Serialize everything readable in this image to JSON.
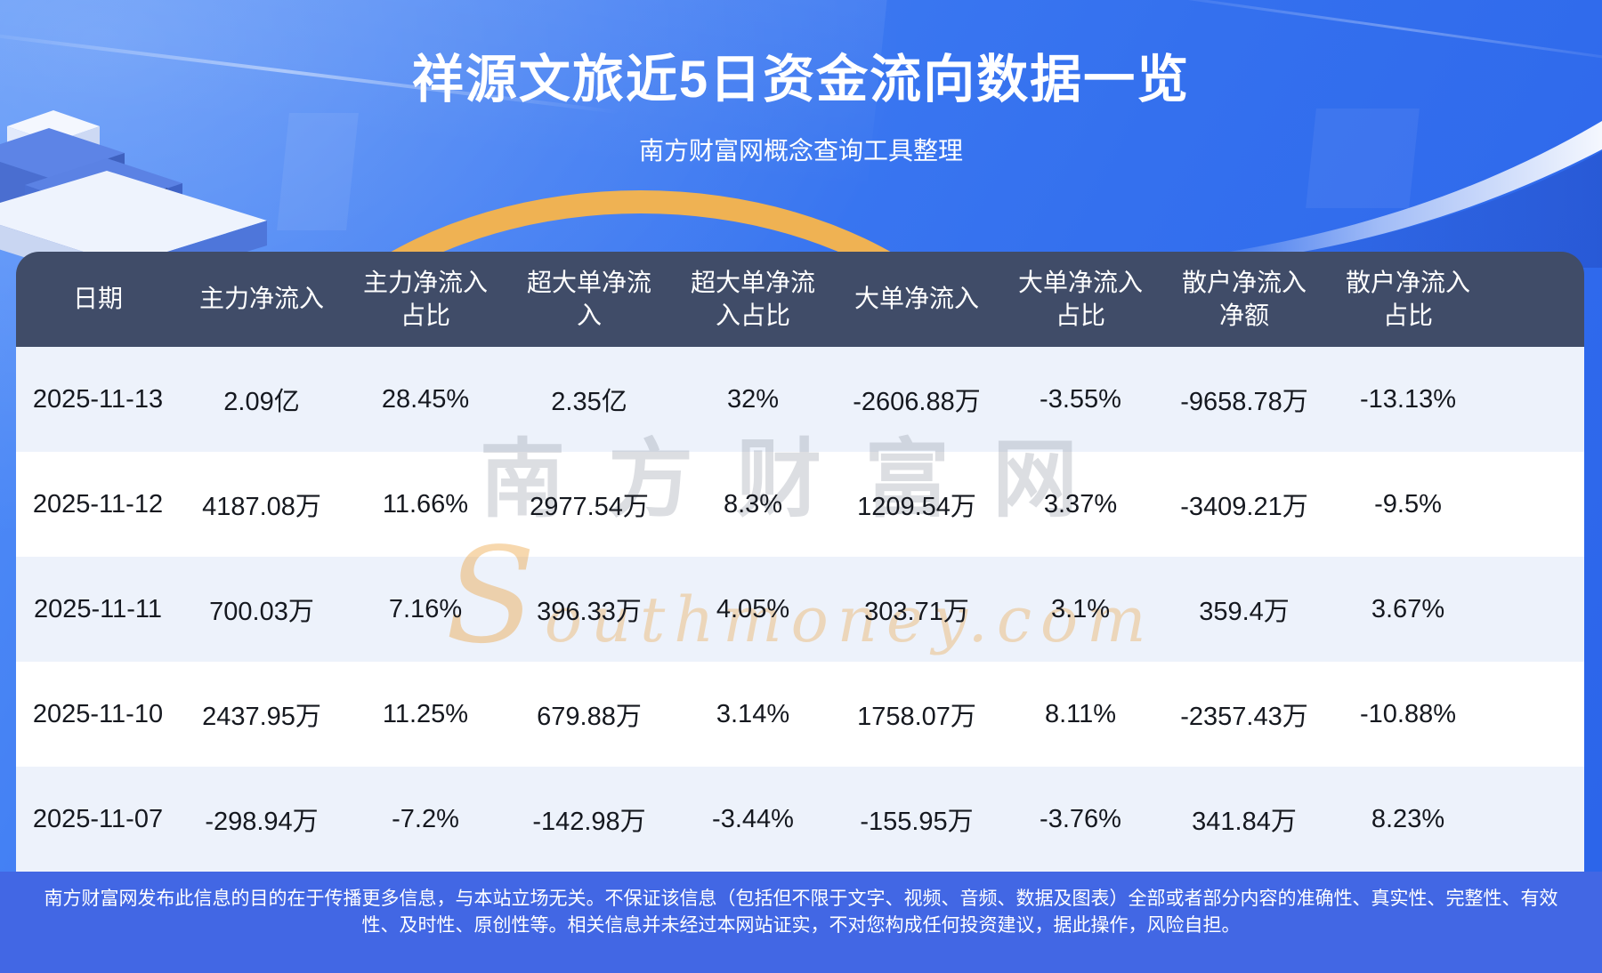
{
  "header": {
    "title": "祥源文旅近5日资金流向数据一览",
    "subtitle": "南方财富网概念查询工具整理"
  },
  "watermark": {
    "cn": "南方财富网",
    "en": "Southmoney.com"
  },
  "chart_data": {
    "type": "table",
    "title": "祥源文旅近5日资金流向数据一览",
    "columns": [
      "日期",
      "主力净流入",
      "主力净流入占比",
      "超大单净流入",
      "超大单净流入占比",
      "大单净流入",
      "大单净流入占比",
      "散户净流入净额",
      "散户净流入占比"
    ],
    "rows": [
      [
        "2025-11-13",
        "2.09亿",
        "28.45%",
        "2.35亿",
        "32%",
        "-2606.88万",
        "-3.55%",
        "-9658.78万",
        "-13.13%"
      ],
      [
        "2025-11-12",
        "4187.08万",
        "11.66%",
        "2977.54万",
        "8.3%",
        "1209.54万",
        "3.37%",
        "-3409.21万",
        "-9.5%"
      ],
      [
        "2025-11-11",
        "700.03万",
        "7.16%",
        "396.33万",
        "4.05%",
        "303.71万",
        "3.1%",
        "359.4万",
        "3.67%"
      ],
      [
        "2025-11-10",
        "2437.95万",
        "11.25%",
        "679.88万",
        "3.14%",
        "1758.07万",
        "8.11%",
        "-2357.43万",
        "-10.88%"
      ],
      [
        "2025-11-07",
        "-298.94万",
        "-7.2%",
        "-142.98万",
        "-3.44%",
        "-155.95万",
        "-3.76%",
        "341.84万",
        "8.23%"
      ]
    ]
  },
  "footer": {
    "disclaimer": "南方财富网发布此信息的目的在于传播更多信息，与本站立场无关。不保证该信息（包括但不限于文字、视频、音频、数据及图表）全部或者部分内容的准确性、真实性、完整性、有效性、及时性、原创性等。相关信息并未经过本网站证实，不对您构成任何投资建议，据此操作，风险自担。"
  },
  "colors": {
    "header_bg": "#404c68",
    "row_alt": "#edf2fb",
    "row_white": "#ffffff",
    "footer_bg": "#4267e4",
    "accent_gold": "#efb253",
    "bg_top": "#5490f8",
    "bg_bottom": "#2b64ea",
    "text_dark": "#15181f"
  }
}
